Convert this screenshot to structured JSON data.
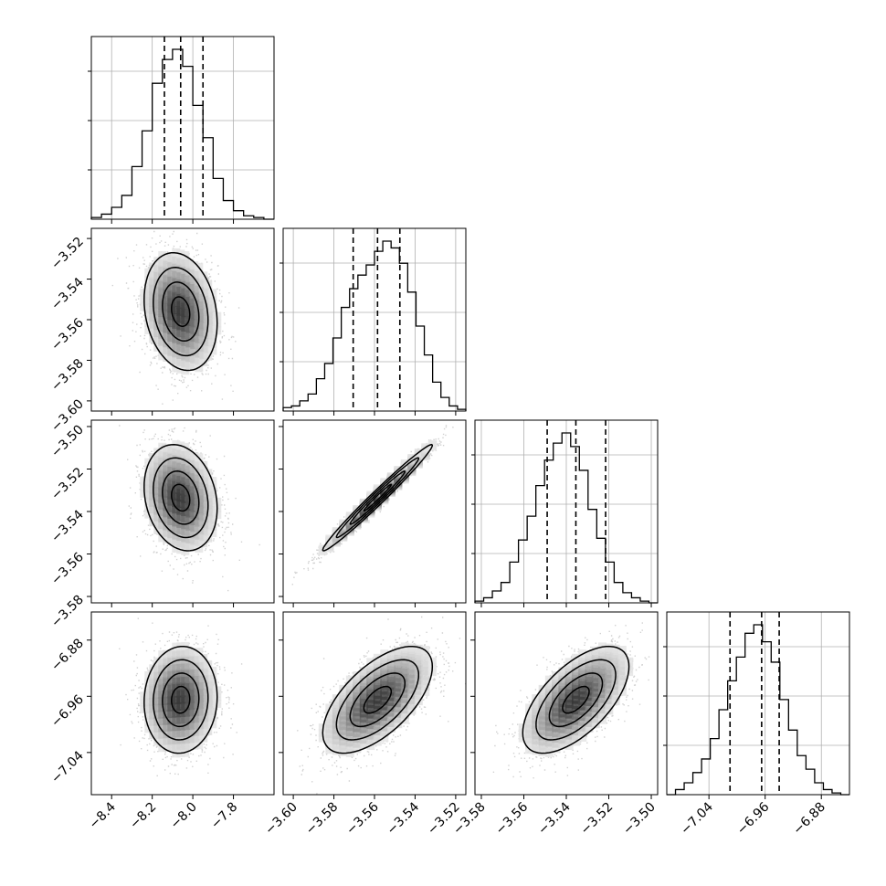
{
  "chart_data": {
    "type": "corner",
    "params": [
      {
        "range": [
          -8.5,
          -7.6
        ],
        "ticks": [
          -8.4,
          -8.2,
          -8.0,
          -7.8
        ],
        "tick_labels": [
          "−8.4",
          "−8.2",
          "−8.0",
          "−7.8"
        ],
        "quantiles": [
          -8.14,
          -8.06,
          -7.95
        ],
        "hist": [
          0.01,
          0.03,
          0.07,
          0.14,
          0.31,
          0.52,
          0.8,
          0.94,
          1.0,
          0.9,
          0.67,
          0.48,
          0.24,
          0.11,
          0.05,
          0.02,
          0.01,
          0.0
        ]
      },
      {
        "range": [
          -3.605,
          -3.515
        ],
        "ticks": [
          -3.6,
          -3.58,
          -3.56,
          -3.54,
          -3.52
        ],
        "tick_labels": [
          "−3.60",
          "−3.58",
          "−3.56",
          "−3.54",
          "−3.52"
        ],
        "quantiles": [
          -3.5705,
          -3.5585,
          -3.5475
        ],
        "hist": [
          0.02,
          0.03,
          0.06,
          0.1,
          0.19,
          0.28,
          0.43,
          0.61,
          0.72,
          0.8,
          0.86,
          0.94,
          1.0,
          0.96,
          0.87,
          0.7,
          0.5,
          0.33,
          0.17,
          0.08,
          0.03,
          0.01
        ]
      },
      {
        "range": [
          -3.583,
          -3.497
        ],
        "ticks": [
          -3.58,
          -3.56,
          -3.54,
          -3.52,
          -3.5
        ],
        "tick_labels": [
          "−3.58",
          "−3.56",
          "−3.54",
          "−3.52",
          "−3.50"
        ],
        "quantiles": [
          -3.549,
          -3.5355,
          -3.5215
        ],
        "hist": [
          0.01,
          0.03,
          0.07,
          0.12,
          0.24,
          0.37,
          0.51,
          0.69,
          0.84,
          0.94,
          1.0,
          0.92,
          0.78,
          0.55,
          0.38,
          0.24,
          0.12,
          0.06,
          0.03,
          0.01,
          0.0
        ]
      },
      {
        "range": [
          -7.1,
          -6.84
        ],
        "ticks": [
          -7.04,
          -6.96,
          -6.88
        ],
        "tick_labels": [
          "−7.04",
          "−6.96",
          "−6.88"
        ],
        "quantiles": [
          -7.01,
          -6.965,
          -6.94
        ],
        "hist": [
          0.0,
          0.03,
          0.07,
          0.13,
          0.21,
          0.33,
          0.5,
          0.67,
          0.81,
          0.95,
          1.0,
          0.9,
          0.78,
          0.56,
          0.38,
          0.23,
          0.15,
          0.07,
          0.03,
          0.01,
          0.0
        ]
      }
    ],
    "pairs": [
      {
        "x": 0,
        "y": 1,
        "corr": -0.2,
        "peak": [
          -8.06,
          -3.556
        ],
        "sigma": [
          0.09,
          0.0145
        ]
      },
      {
        "x": 0,
        "y": 2,
        "corr": -0.2,
        "peak": [
          -8.06,
          -3.5335
        ],
        "sigma": [
          0.09,
          0.0125
        ]
      },
      {
        "x": 1,
        "y": 2,
        "corr": 0.985,
        "peak": [
          -3.5585,
          -3.5335
        ],
        "sigma": [
          0.0135,
          0.0125
        ]
      },
      {
        "x": 0,
        "y": 3,
        "corr": 0.05,
        "peak": [
          -8.06,
          -6.965
        ],
        "sigma": [
          0.09,
          0.038
        ]
      },
      {
        "x": 1,
        "y": 3,
        "corr": 0.62,
        "peak": [
          -3.5585,
          -6.965
        ],
        "sigma": [
          0.0135,
          0.038
        ]
      },
      {
        "x": 2,
        "y": 3,
        "corr": 0.62,
        "peak": [
          -3.5355,
          -6.965
        ],
        "sigma": [
          0.0125,
          0.038
        ]
      }
    ]
  }
}
